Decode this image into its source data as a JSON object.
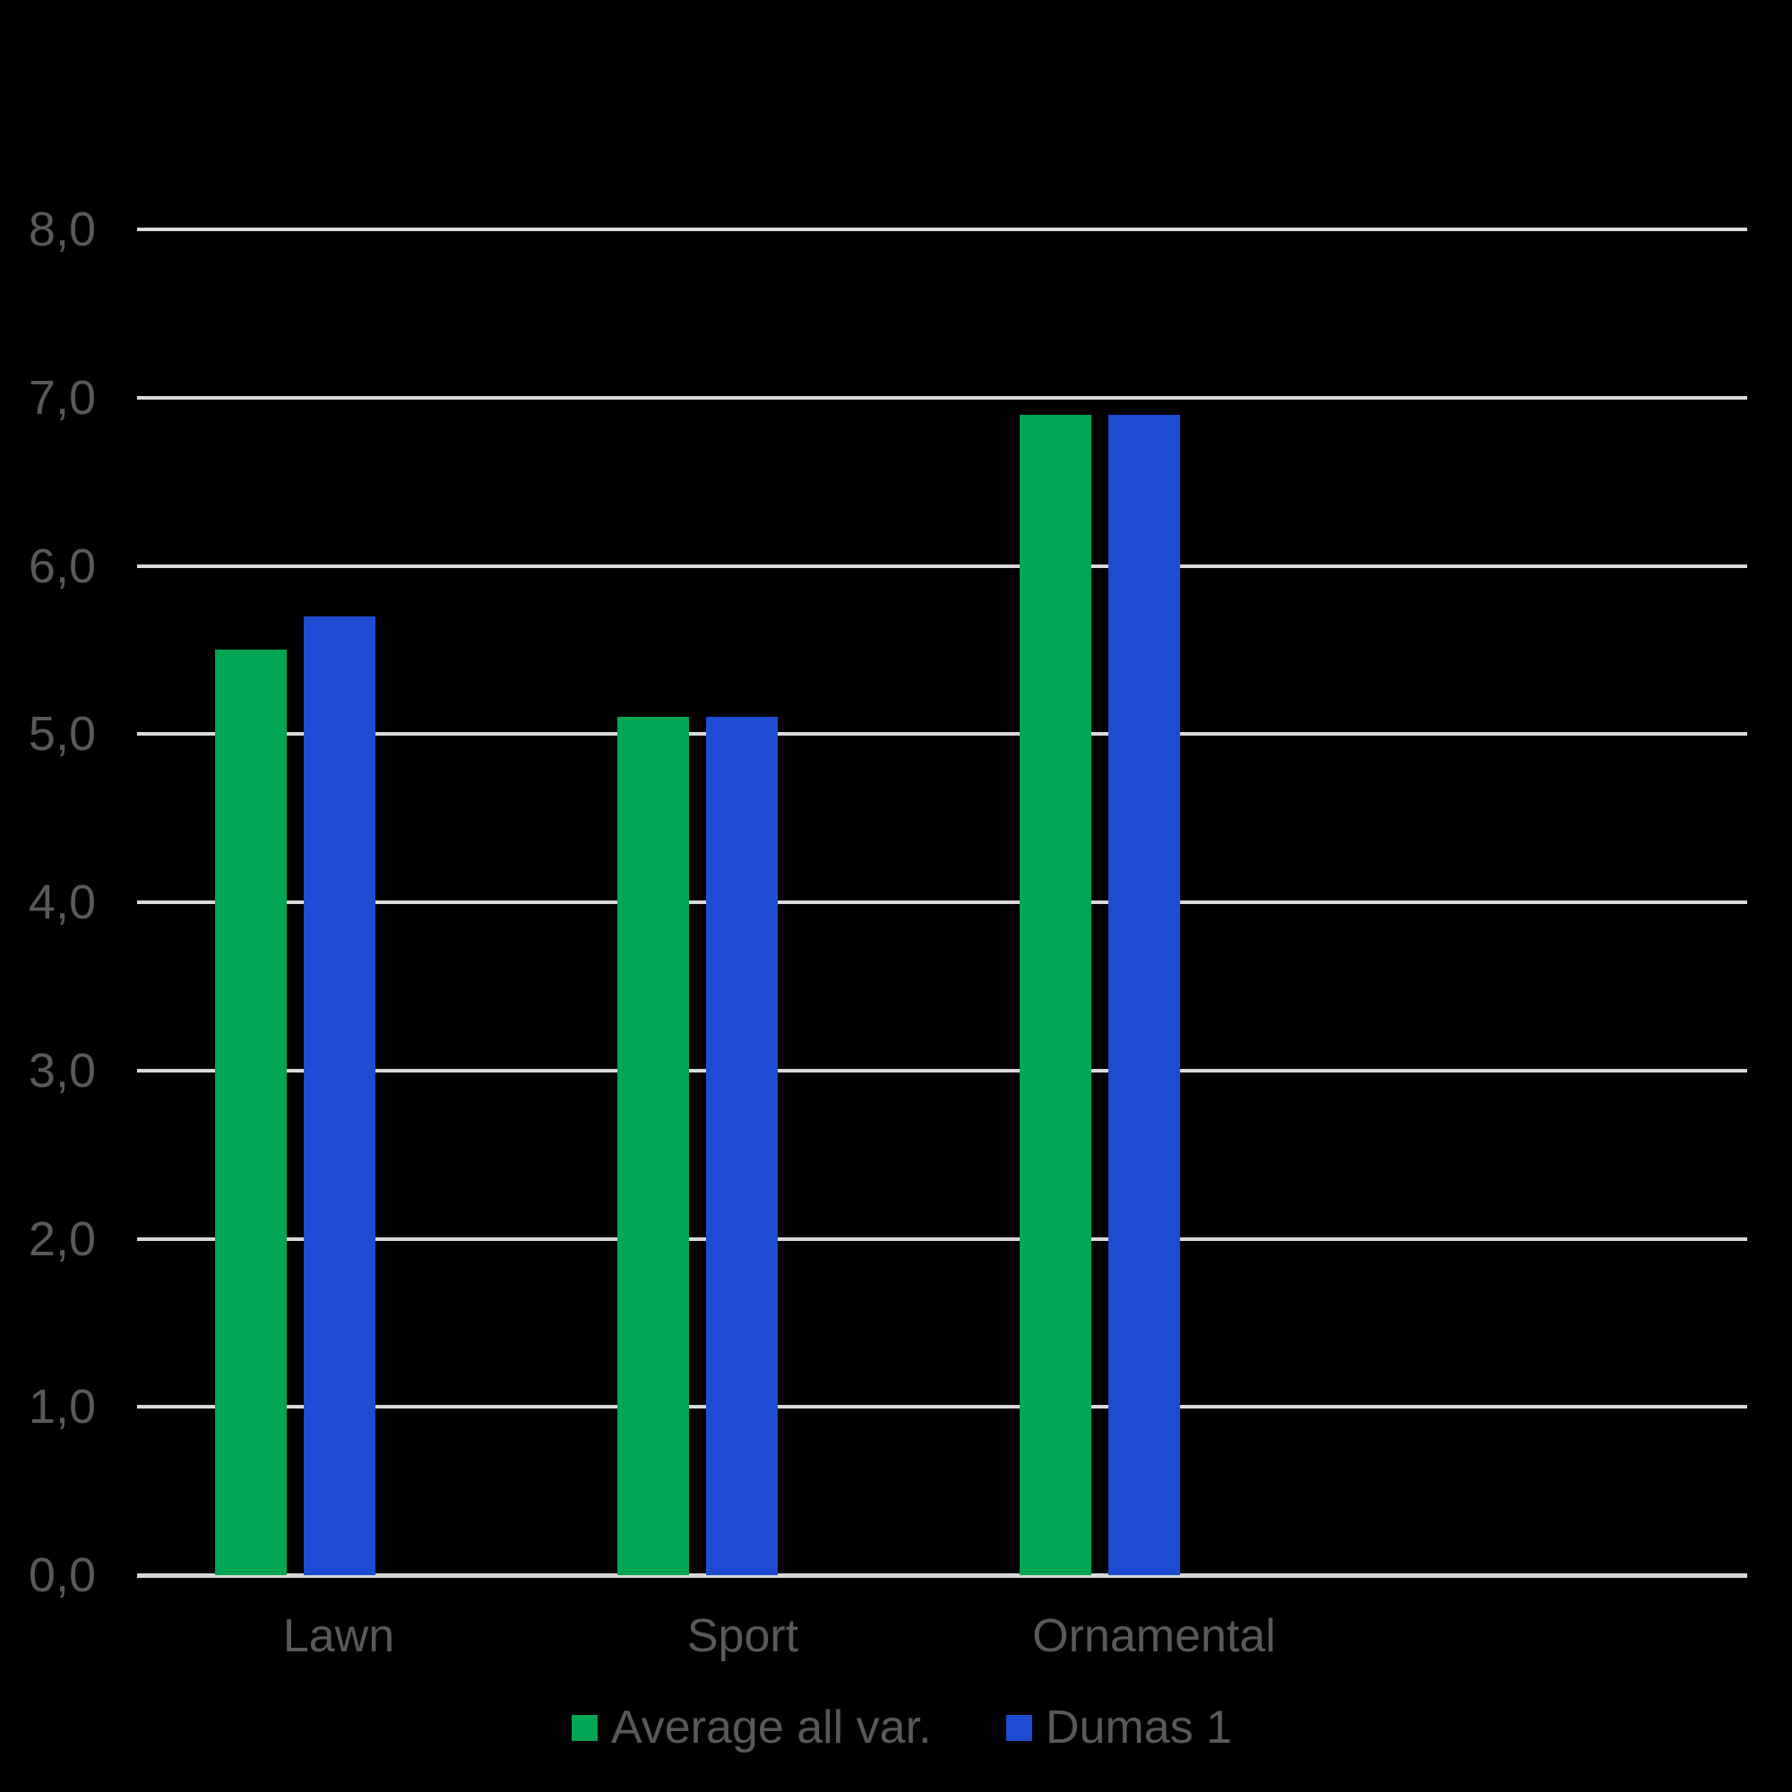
{
  "page": {
    "background_color": "#000000"
  },
  "chart_data": {
    "type": "bar",
    "title": "",
    "categories": [
      "Lawn",
      "Sport",
      "Ornamental"
    ],
    "series": [
      {
        "name": "Average all var.",
        "color": "#00A651",
        "values": [
          5.5,
          5.1,
          6.9
        ]
      },
      {
        "name": "Dumas 1",
        "color": "#1D4CD2",
        "values": [
          5.7,
          5.1,
          6.9
        ]
      }
    ],
    "y_axis": {
      "min": 0,
      "max": 8,
      "step": 1,
      "tick_labels": [
        "0,0",
        "1,0",
        "2,0",
        "3,0",
        "4,0",
        "5,0",
        "6,0",
        "7,0",
        "8,0"
      ],
      "decimal_separator": ","
    },
    "x_axis": {
      "labels": [
        "Lawn",
        "Sport",
        "Ornamental"
      ]
    },
    "grid": "horizontal",
    "gridline_color": "#D9D9D9",
    "axis_line_color": "#D9D9D9",
    "text_color": "#595959",
    "legend_position": "bottom",
    "legend": {
      "items": [
        {
          "label": "Average all var.",
          "color": "#00A651"
        },
        {
          "label": "Dumas 1",
          "color": "#1D4CD2"
        }
      ]
    }
  }
}
